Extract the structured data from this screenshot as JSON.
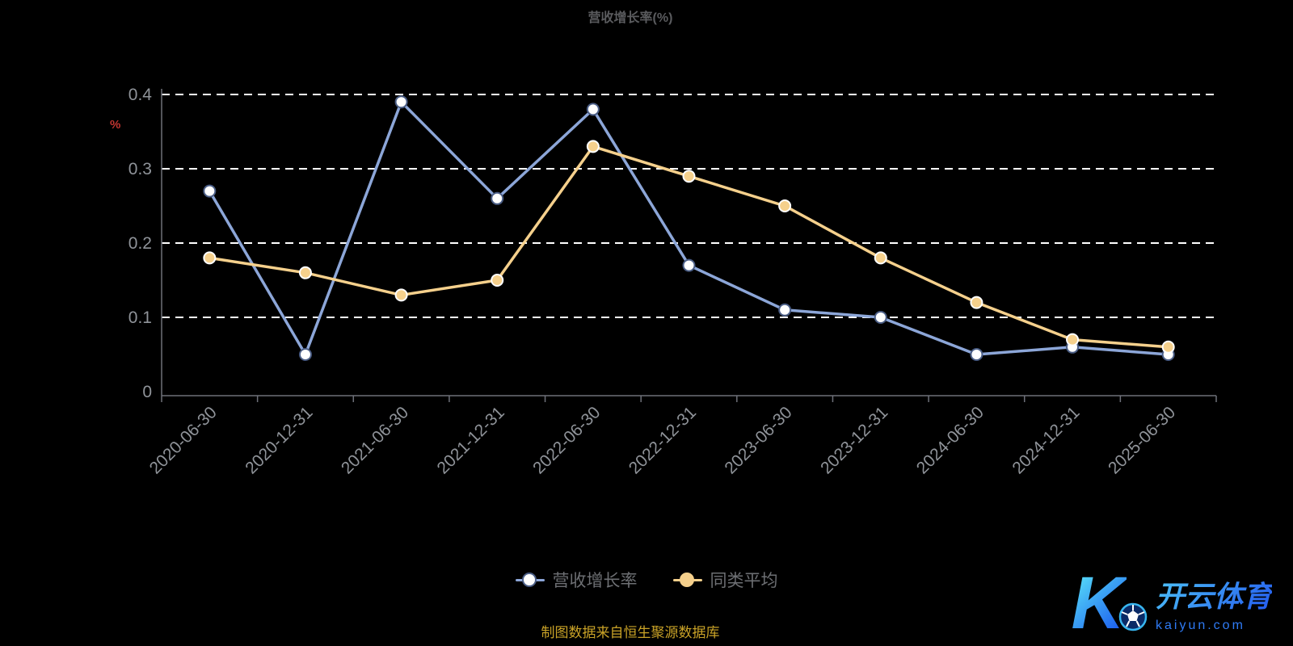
{
  "title": "营收增长率(%)",
  "axis": {
    "unit_label": "%"
  },
  "footer": {
    "source_text": "制图数据来自恒生聚源数据库"
  },
  "logo": {
    "letter": "K",
    "brand": "开云体育",
    "domain": "kaiyun.com"
  },
  "colors": {
    "title": "#5a5b5e",
    "axis_line": "#6e7079",
    "tick_text": "#8f9399",
    "gridline": "#ffffff",
    "unit_label": "#c23531",
    "footer_text": "#c9a227"
  },
  "chart_data": {
    "type": "line",
    "title": "营收增长率(%)",
    "xlabel": "",
    "ylabel": "%",
    "ylim": [
      0,
      0.4
    ],
    "yticks": [
      0,
      0.1,
      0.2,
      0.3,
      0.4
    ],
    "grid": "dashed-horizontal",
    "legend_position": "bottom",
    "categories": [
      "2020-06-30",
      "2020-12-31",
      "2021-06-30",
      "2021-12-31",
      "2022-06-30",
      "2022-12-31",
      "2023-06-30",
      "2023-12-31",
      "2024-06-30",
      "2024-12-31",
      "2025-06-30"
    ],
    "series": [
      {
        "name": "营收增长率",
        "color": "#8ca6d8",
        "marker_fill": "#ffffff",
        "marker_stroke": "#4a5d85",
        "values": [
          0.27,
          0.05,
          0.39,
          0.26,
          0.38,
          0.17,
          0.11,
          0.1,
          0.05,
          0.06,
          0.05
        ]
      },
      {
        "name": "同类平均",
        "color": "#f5d08c",
        "marker_fill": "#f5d08c",
        "marker_stroke": "#ffffff",
        "values": [
          0.18,
          0.16,
          0.13,
          0.15,
          0.33,
          0.29,
          0.25,
          0.18,
          0.12,
          0.07,
          0.06
        ]
      }
    ]
  }
}
